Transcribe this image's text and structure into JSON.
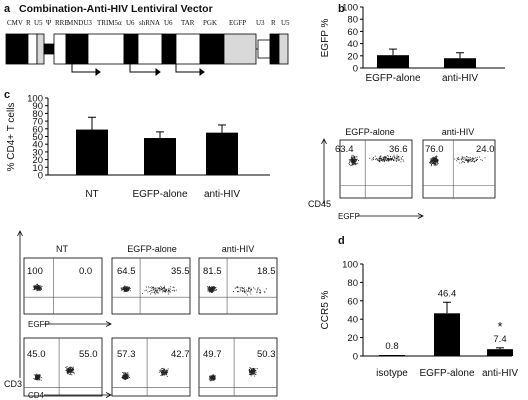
{
  "panel_a": {
    "letter": "a",
    "title": "Combination-Anti-HIV  Lentiviral Vector",
    "elements": [
      "CMV",
      "R",
      "U5",
      "Ψ",
      "RRE",
      "MNDU3",
      "TRIM5α",
      "U6",
      "shRNA",
      "U6",
      "TAR",
      "PGK",
      "EGFP",
      "U3",
      "R",
      "U5"
    ]
  },
  "chart_data": [
    {
      "panel": "b",
      "type": "bar",
      "categories": [
        "EGFP-alone",
        "anti-HIV"
      ],
      "values": [
        21,
        16
      ],
      "errors": [
        10,
        9
      ],
      "ylabel": "EGFP %",
      "ylim": [
        0,
        100
      ],
      "yticks": [
        0,
        20,
        40,
        60,
        80,
        100
      ]
    },
    {
      "panel": "c",
      "type": "bar",
      "categories": [
        "NT",
        "EGFP-alone",
        "anti-HIV"
      ],
      "values": [
        59,
        48,
        55
      ],
      "errors": [
        16,
        8,
        10
      ],
      "ylabel": "% CD4+ T cells",
      "ylim": [
        0,
        100
      ],
      "yticks": [
        0,
        10,
        20,
        30,
        40,
        50,
        60,
        70,
        80,
        90,
        100
      ]
    },
    {
      "panel": "d",
      "type": "bar",
      "categories": [
        "isotype",
        "EGFP-alone",
        "anti-HIV"
      ],
      "values": [
        0.8,
        46.4,
        7.4
      ],
      "errors": [
        0,
        12,
        1.5
      ],
      "value_labels": [
        "0.8",
        "46.4",
        "7.4"
      ],
      "annotations": [
        "",
        "",
        "*"
      ],
      "ylabel": "CCR5 %",
      "ylim": [
        0,
        100
      ],
      "yticks": [
        0,
        20,
        40,
        60,
        80,
        100
      ]
    }
  ],
  "flow_b": {
    "plots": [
      {
        "title": "EGFP-alone",
        "quadrants": [
          "63.4",
          "36.6"
        ]
      },
      {
        "title": "anti-HIV",
        "quadrants": [
          "76.0",
          "24.0"
        ]
      }
    ],
    "ylabel": "CD45",
    "xlabel": "EGFP"
  },
  "flow_c_top": {
    "plots": [
      {
        "title": "NT",
        "quadrants": [
          "100",
          "0.0"
        ]
      },
      {
        "title": "EGFP-alone",
        "quadrants": [
          "64.5",
          "35.5"
        ]
      },
      {
        "title": "anti-HIV",
        "quadrants": [
          "81.5",
          "18.5"
        ]
      }
    ],
    "xlabel": "EGFP"
  },
  "flow_c_bottom": {
    "plots": [
      {
        "quadrants": [
          "45.0",
          "55.0"
        ]
      },
      {
        "quadrants": [
          "57.3",
          "42.7"
        ]
      },
      {
        "quadrants": [
          "49.7",
          "50.3"
        ]
      }
    ],
    "xlabel": "CD4",
    "ylabel": "CD3"
  },
  "letters": {
    "b": "b",
    "c": "c",
    "d": "d"
  },
  "colors": {
    "bar": "#000000",
    "gfp_box": "#000000",
    "ltr_box": "#d9d9d9"
  }
}
